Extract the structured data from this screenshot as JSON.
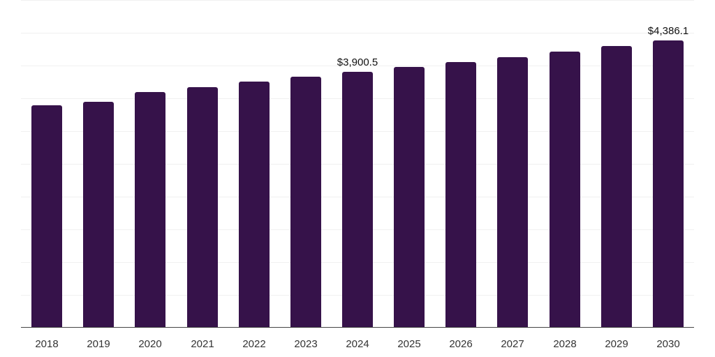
{
  "chart_data": {
    "type": "bar",
    "title": "",
    "xlabel": "",
    "ylabel": "",
    "categories": [
      "2018",
      "2019",
      "2020",
      "2021",
      "2022",
      "2023",
      "2024",
      "2025",
      "2026",
      "2027",
      "2028",
      "2029",
      "2030"
    ],
    "values": [
      3397,
      3451,
      3600,
      3674,
      3759,
      3834,
      3900.5,
      3983,
      4058,
      4132,
      4217,
      4303,
      4386.1
    ],
    "data_labels": [
      {
        "category": "2024",
        "text": "$3,900.5"
      },
      {
        "category": "2030",
        "text": "$4,386.1"
      }
    ],
    "ylim": [
      0,
      5000
    ],
    "ytick_step": 500,
    "grid": true,
    "y_axis_labels_visible": false,
    "legend": null,
    "bar_color": "#36124a"
  }
}
